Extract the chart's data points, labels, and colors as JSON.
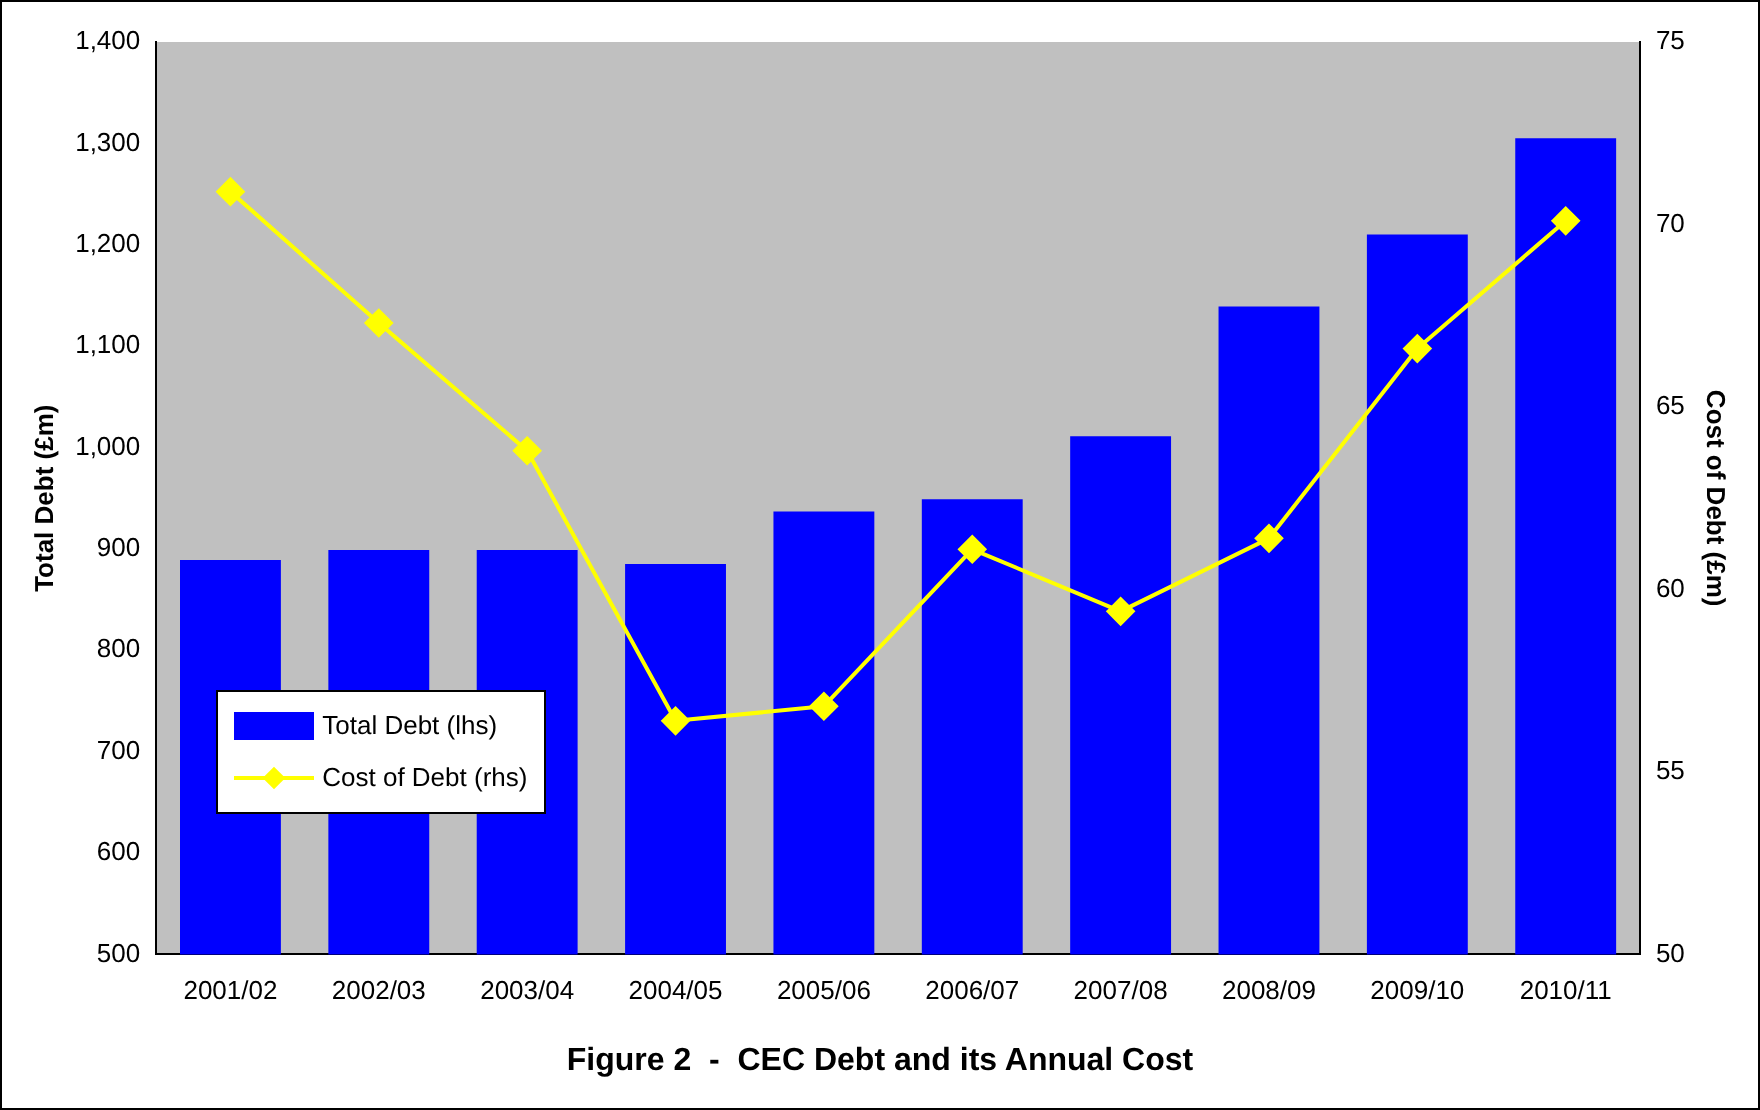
{
  "chart_data": {
    "type": "bar",
    "title": "Figure 2  -  CEC Debt and its Annual Cost",
    "ylabel": "Total Debt (£m)",
    "y2label": "Cost of Debt (£m)",
    "categories": [
      "2001/02",
      "2002/03",
      "2003/04",
      "2004/05",
      "2005/06",
      "2006/07",
      "2007/08",
      "2008/09",
      "2009/10",
      "2010/11"
    ],
    "series": [
      {
        "name": "Total Debt (lhs)",
        "color": "#0000ff",
        "values": [
          889,
          899,
          899,
          885,
          937,
          949,
          1011,
          1139,
          1210,
          1305
        ]
      },
      {
        "name": "Cost of Debt (rhs)",
        "type": "line",
        "axis": "y2",
        "color": "#ffff00",
        "marker": "diamond",
        "values": [
          70.9,
          67.3,
          63.8,
          56.4,
          56.8,
          61.1,
          59.4,
          61.4,
          66.6,
          70.1
        ]
      }
    ],
    "ylim": [
      500,
      1400
    ],
    "yticks": [
      500,
      600,
      700,
      800,
      900,
      {
        "value": 1000,
        "label": "1,000"
      },
      {
        "value": 1100,
        "label": "1,100"
      },
      {
        "value": 1200,
        "label": "1,200"
      },
      {
        "value": 1300,
        "label": "1,300"
      },
      {
        "value": 1400,
        "label": "1,400"
      }
    ],
    "y2lim": [
      50,
      75
    ],
    "y2ticks": [
      50,
      55,
      60,
      65,
      70,
      75
    ],
    "grid": false,
    "legend": "left"
  }
}
